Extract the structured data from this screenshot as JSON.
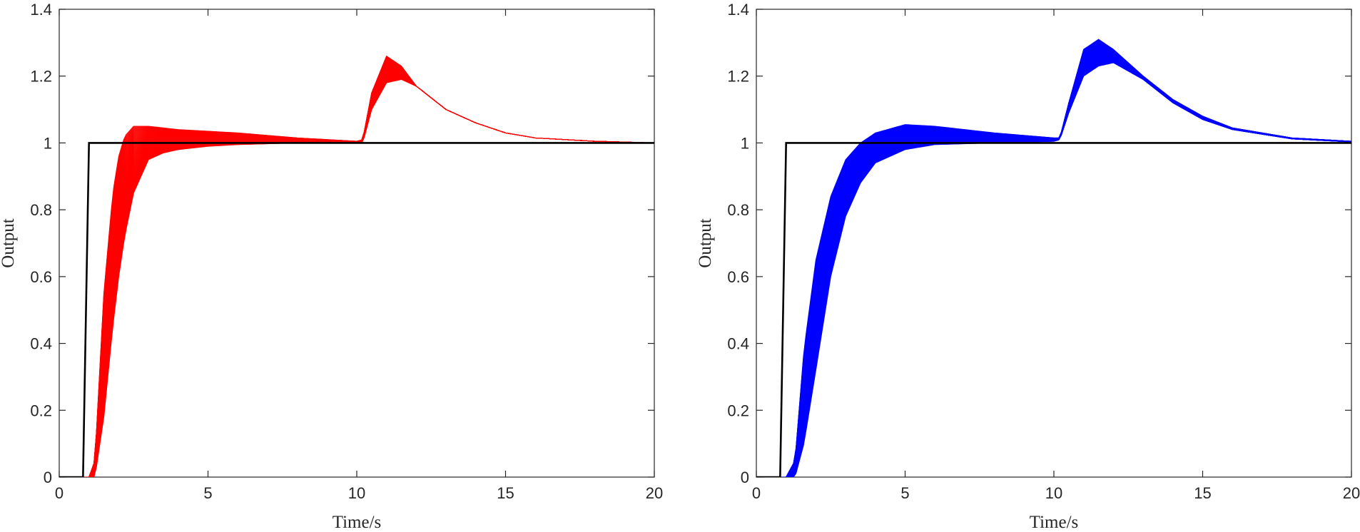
{
  "chart_data": [
    {
      "type": "line",
      "xlabel": "Time/s",
      "ylabel": "Output",
      "xlim": [
        0,
        20
      ],
      "ylim": [
        0,
        1.4
      ],
      "xticks": [
        "0",
        "5",
        "10",
        "15",
        "20"
      ],
      "yticks": [
        "0",
        "0.2",
        "0.4",
        "0.6",
        "0.8",
        "1",
        "1.2",
        "1.4"
      ],
      "grid": false,
      "legend": "none",
      "series": [
        {
          "role": "reference",
          "color": "#000000",
          "x": [
            0,
            0.8,
            1.0,
            20
          ],
          "y": [
            0,
            0,
            1,
            1
          ]
        },
        {
          "role": "ensemble",
          "color": "#ff0000",
          "count": 100,
          "envelope": {
            "x": [
              0,
              1.0,
              1.2,
              1.5,
              1.8,
              2.0,
              2.2,
              2.5,
              3.0,
              3.5,
              4.0,
              5.0,
              6.0,
              8.0,
              10.0,
              10.2,
              10.5,
              11.0,
              11.5,
              12.0,
              13.0,
              14.0,
              15.0,
              16.0,
              18.0,
              20.0
            ],
            "upper": [
              0,
              0,
              0.05,
              0.55,
              0.85,
              0.96,
              1.02,
              1.05,
              1.05,
              1.045,
              1.04,
              1.035,
              1.03,
              1.015,
              1.005,
              1.01,
              1.15,
              1.26,
              1.23,
              1.17,
              1.1,
              1.06,
              1.03,
              1.015,
              1.005,
              1.0
            ],
            "lower": [
              0,
              0,
              0.0,
              0.18,
              0.45,
              0.6,
              0.72,
              0.85,
              0.95,
              0.97,
              0.98,
              0.99,
              0.995,
              1.0,
              1.0,
              1.0,
              1.1,
              1.18,
              1.19,
              1.17,
              1.1,
              1.06,
              1.03,
              1.015,
              1.005,
              1.0
            ]
          }
        }
      ]
    },
    {
      "type": "line",
      "xlabel": "Time/s",
      "ylabel": "Output",
      "xlim": [
        0,
        20
      ],
      "ylim": [
        0,
        1.4
      ],
      "xticks": [
        "0",
        "5",
        "10",
        "15",
        "20"
      ],
      "yticks": [
        "0",
        "0.2",
        "0.4",
        "0.6",
        "0.8",
        "1",
        "1.2",
        "1.4"
      ],
      "grid": false,
      "legend": "none",
      "series": [
        {
          "role": "reference",
          "color": "#000000",
          "x": [
            0,
            0.8,
            1.0,
            20
          ],
          "y": [
            0,
            0,
            1,
            1
          ]
        },
        {
          "role": "ensemble",
          "color": "#0000ff",
          "count": 100,
          "envelope": {
            "x": [
              0,
              1.0,
              1.3,
              1.6,
              2.0,
              2.5,
              3.0,
              3.5,
              4.0,
              5.0,
              6.0,
              8.0,
              10.0,
              10.2,
              10.5,
              11.0,
              11.5,
              12.0,
              13.0,
              14.0,
              15.0,
              16.0,
              18.0,
              20.0
            ],
            "upper": [
              0,
              0,
              0.05,
              0.38,
              0.65,
              0.84,
              0.95,
              1.0,
              1.03,
              1.055,
              1.05,
              1.03,
              1.015,
              1.015,
              1.12,
              1.28,
              1.31,
              1.28,
              1.2,
              1.13,
              1.08,
              1.045,
              1.015,
              1.005
            ],
            "lower": [
              0,
              0,
              0.0,
              0.1,
              0.32,
              0.6,
              0.78,
              0.88,
              0.94,
              0.98,
              0.995,
              1.0,
              1.005,
              1.01,
              1.09,
              1.2,
              1.23,
              1.24,
              1.19,
              1.12,
              1.07,
              1.04,
              1.012,
              1.003
            ]
          }
        }
      ]
    }
  ]
}
